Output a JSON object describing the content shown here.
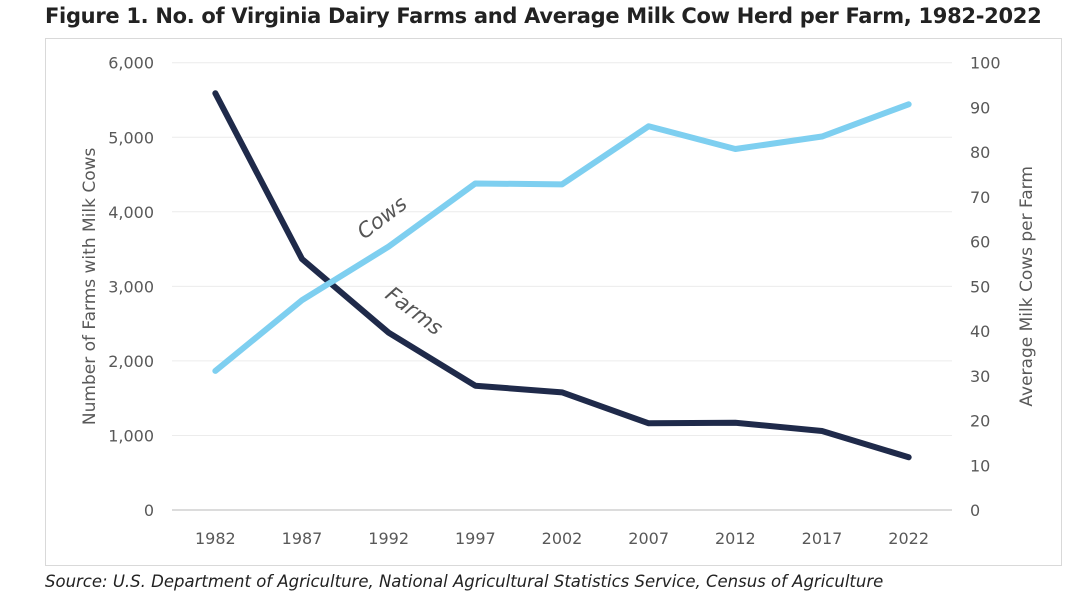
{
  "title": "Figure 1. No. of Virginia Dairy Farms and Average Milk Cow Herd per Farm, 1982-2022",
  "source": "Source: U.S. Department of Agriculture, National Agricultural Statistics Service, Census of Agriculture",
  "chart_data": {
    "type": "line",
    "title": "Figure 1. No. of Virginia Dairy Farms and Average Milk Cow Herd per Farm, 1982-2022",
    "x": [
      "1982",
      "1987",
      "1992",
      "1997",
      "2002",
      "2007",
      "2012",
      "2017",
      "2022"
    ],
    "ylabel": "Number of Farms with Milk Cows",
    "y2label": "Average Milk Cows per Farm",
    "ylim": [
      0,
      6000
    ],
    "y2lim": [
      0,
      100
    ],
    "yticks": [
      "0",
      "1,000",
      "2,000",
      "3,000",
      "4,000",
      "5,000",
      "6,000"
    ],
    "y2ticks": [
      "0",
      "10",
      "20",
      "30",
      "40",
      "50",
      "60",
      "70",
      "80",
      "90",
      "100"
    ],
    "grid": true,
    "series": [
      {
        "name": "Farms",
        "axis": "left",
        "color": "#1f2a4a",
        "values": [
          5590,
          3367,
          2378,
          1667,
          1578,
          1163,
          1171,
          1060,
          707
        ]
      },
      {
        "name": "Cows",
        "axis": "right",
        "color": "#7ecff0",
        "values": [
          31.1,
          46.9,
          58.9,
          73.0,
          72.8,
          85.8,
          80.7,
          83.5,
          90.7
        ]
      }
    ]
  }
}
